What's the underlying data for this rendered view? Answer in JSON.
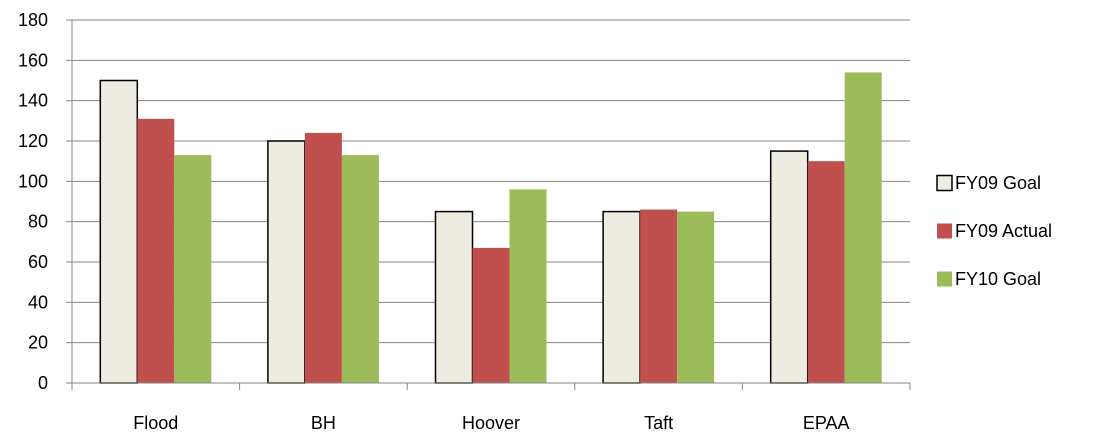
{
  "chart_data": {
    "type": "bar",
    "categories": [
      "Flood",
      "BH",
      "Hoover",
      "Taft",
      "EPAA"
    ],
    "series": [
      {
        "name": "FY09 Goal",
        "values": [
          150,
          120,
          85,
          85,
          115
        ],
        "color": "#EEECE1",
        "stroke": "#000000"
      },
      {
        "name": "FY09 Actual",
        "values": [
          131,
          124,
          67,
          86,
          110
        ],
        "color": "#C0504D",
        "stroke": "none"
      },
      {
        "name": "FY10 Goal",
        "values": [
          113,
          113,
          96,
          85,
          154
        ],
        "color": "#9BBB59",
        "stroke": "none"
      }
    ],
    "ylim": [
      0,
      180
    ],
    "yticks": [
      0,
      20,
      40,
      60,
      80,
      100,
      120,
      140,
      160,
      180
    ],
    "grid": true,
    "legend_position": "right",
    "title": "",
    "xlabel": "",
    "ylabel": ""
  }
}
